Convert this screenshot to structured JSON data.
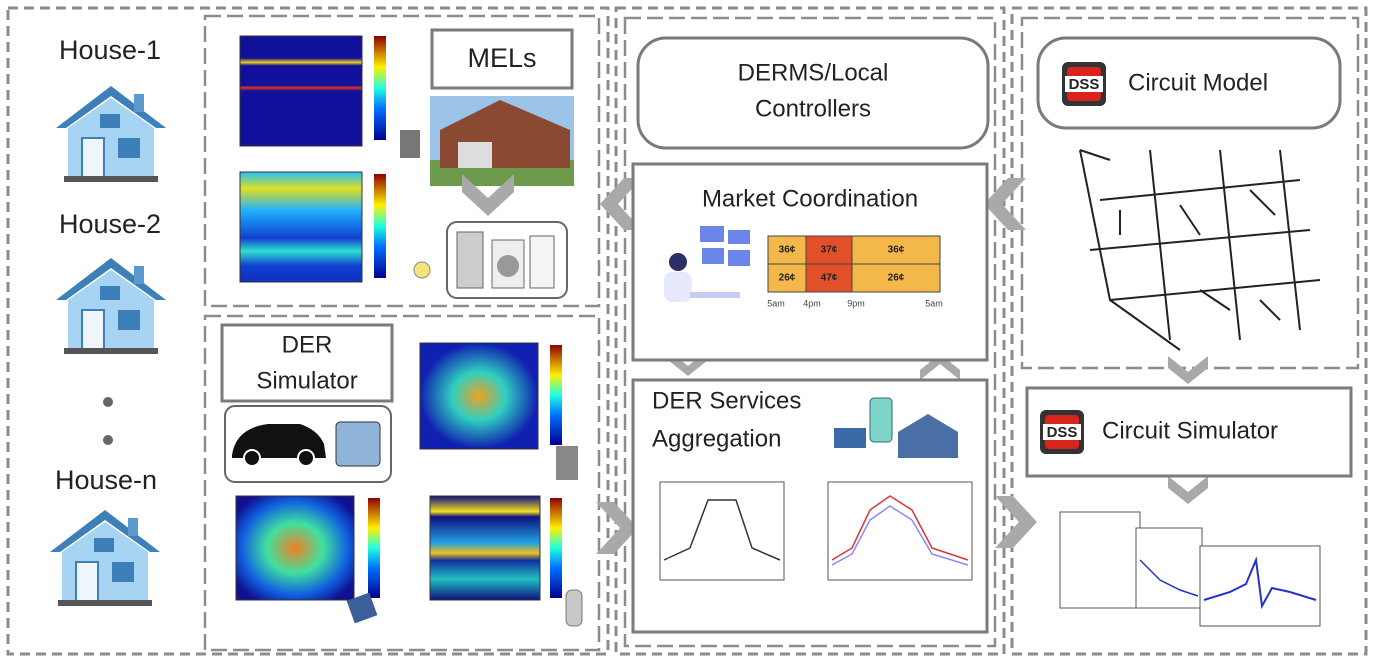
{
  "houses": [
    "House-1",
    "House-2",
    "House-n"
  ],
  "mels": {
    "label": "MELs"
  },
  "der_simulator": {
    "lines": [
      "DER",
      "Simulator"
    ]
  },
  "derms": {
    "lines": [
      "DERMS/Local",
      "Controllers"
    ]
  },
  "market_coordination": {
    "label": "Market Coordination",
    "price_table": {
      "rows": [
        [
          "36¢",
          "37¢",
          "36¢"
        ],
        [
          "26¢",
          "47¢",
          "26¢"
        ]
      ],
      "times": [
        "5am",
        "4pm",
        "9pm",
        "5am"
      ]
    }
  },
  "der_services": {
    "lines": [
      "DER Services",
      "Aggregation"
    ]
  },
  "circuit_model": {
    "icon": "DSS",
    "label": "Circuit Model"
  },
  "circuit_simulator": {
    "icon": "DSS",
    "label": "Circuit Simulator"
  }
}
